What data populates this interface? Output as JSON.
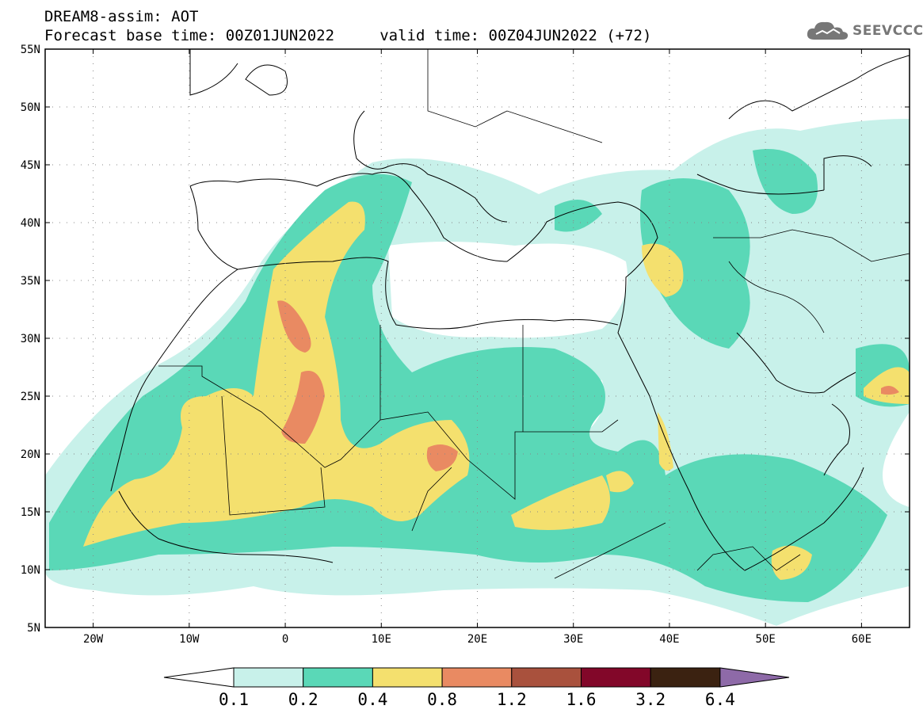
{
  "header": {
    "line1": "DREAM8-assim: AOT",
    "line2": "Forecast base time: 00Z01JUN2022     valid time: 00Z04JUN2022 (+72)"
  },
  "logo": {
    "text": "SEEVCCC",
    "icon": "cloud-icon"
  },
  "map": {
    "lat_labels": [
      "55N",
      "50N",
      "45N",
      "40N",
      "35N",
      "30N",
      "25N",
      "20N",
      "15N",
      "10N",
      "5N"
    ],
    "lon_labels": [
      "20W",
      "10W",
      "0",
      "10E",
      "20E",
      "30E",
      "40E",
      "50E",
      "60E"
    ]
  },
  "colorbar": {
    "labels": [
      "0.1",
      "0.2",
      "0.4",
      "0.8",
      "1.2",
      "1.6",
      "3.2",
      "6.4"
    ],
    "colors": [
      "#ffffff",
      "#c8f1ea",
      "#5ad8b7",
      "#f4e06e",
      "#e98a62",
      "#a9513d",
      "#820729",
      "#3b2211",
      "#8e6aa8"
    ]
  }
}
